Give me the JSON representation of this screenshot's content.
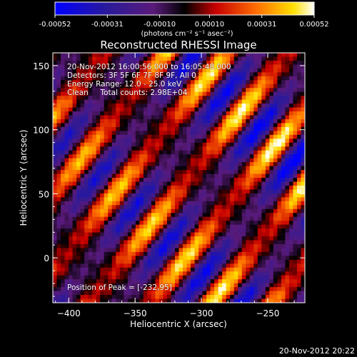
{
  "chart_data": {
    "type": "heatmap",
    "title": "Reconstructed RHESSI Image",
    "xlabel": "Heliocentric X (arcsec)",
    "ylabel": "Heliocentric Y (arcsec)",
    "xlim": [
      -412,
      -222
    ],
    "ylim": [
      -35,
      160
    ],
    "xticks": [
      -400,
      -350,
      -300,
      -250
    ],
    "yticks": [
      0,
      50,
      100,
      150
    ],
    "colorbar": {
      "range": [
        -0.00052,
        0.00052
      ],
      "ticks": [
        "-0.00052",
        "-0.00031",
        "-0.00010",
        "0.00010",
        "0.00031",
        "0.00052"
      ],
      "tick_values": [
        -0.00052,
        -0.00031,
        -0.0001,
        0.0001,
        0.00031,
        0.00052
      ],
      "unit_label": "(photons cm⁻² s⁻¹ asec⁻²)",
      "colormap": [
        "#0000ff",
        "#2a1a9a",
        "#5a1a7a",
        "#000000",
        "#c80000",
        "#ff7000",
        "#ffe000",
        "#ffffff"
      ]
    },
    "pattern": {
      "description": "diagonal fringe stripes",
      "peak": [
        -232,
        95
      ]
    },
    "annotations": {
      "time": "20-Nov-2012 16:00:56.000 to 16:05:48.000",
      "detectors": "Detectors: 3F 5F 6F 7F 8F 9F, All 0",
      "energy": "Energy Range: 12.0 - 25.0 keV",
      "method": "Clean     Total counts: 2.98E+04",
      "peak": "Position of Peak = [-232,95]"
    },
    "timestamp": "20-Nov-2012 20:22"
  }
}
